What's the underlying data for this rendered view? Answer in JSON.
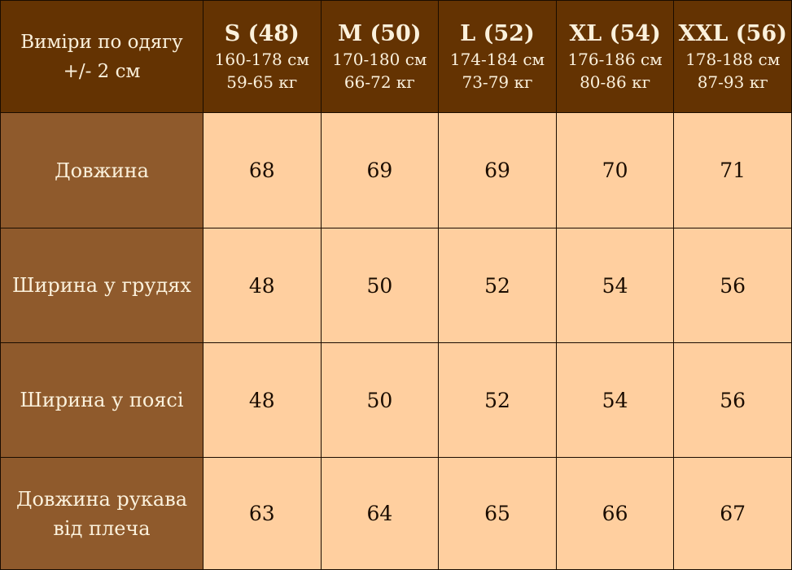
{
  "header": {
    "corner_line1": "Виміри по одягу",
    "corner_line2": "+/- 2 см",
    "sizes": [
      {
        "name": "S (48)",
        "height": "160-178 см",
        "weight": "59-65 кг"
      },
      {
        "name": "M (50)",
        "height": "170-180 см",
        "weight": "66-72 кг"
      },
      {
        "name": "L (52)",
        "height": "174-184 см",
        "weight": "73-79 кг"
      },
      {
        "name": "XL (54)",
        "height": "176-186 см",
        "weight": "80-86 кг"
      },
      {
        "name": "XXL (56)",
        "height": "178-188 см",
        "weight": "87-93 кг"
      }
    ]
  },
  "rows": [
    {
      "label": "Довжина",
      "label2": "",
      "values": [
        "68",
        "69",
        "69",
        "70",
        "71"
      ]
    },
    {
      "label": "Ширина у грудях",
      "label2": "",
      "values": [
        "48",
        "50",
        "52",
        "54",
        "56"
      ]
    },
    {
      "label": "Ширина у поясі",
      "label2": "",
      "values": [
        "48",
        "50",
        "52",
        "54",
        "56"
      ]
    },
    {
      "label": "Довжина рукава",
      "label2": "від  плеча",
      "values": [
        "63",
        "64",
        "65",
        "66",
        "67"
      ]
    }
  ],
  "colors": {
    "header": "#643302",
    "label_column": "#8f5a2c",
    "cell": "#ffcf9f",
    "header_text": "#fbf1dc"
  }
}
